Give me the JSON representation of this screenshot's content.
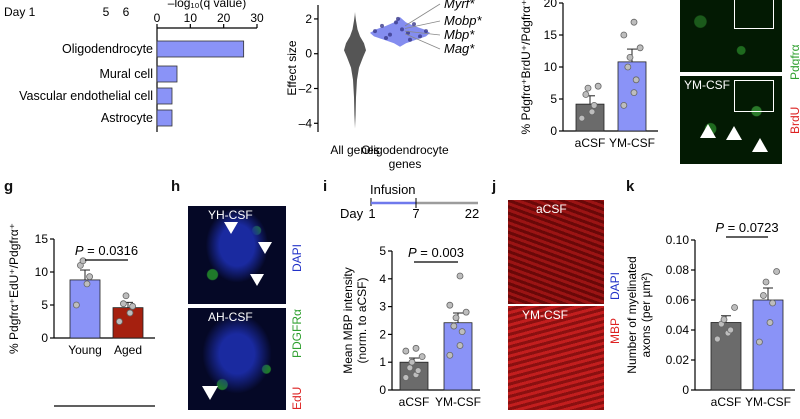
{
  "panel_letters": {
    "g": "g",
    "h": "h",
    "i": "i",
    "j": "j",
    "k": "k"
  },
  "colors": {
    "bar_blue": "#8a93f7",
    "bar_gray": "#6b6b6b",
    "bar_red": "#a5200f",
    "violin_gray": "#555555",
    "violin_blue": "#6f79ec"
  },
  "micrographs": {
    "top_right": {
      "label_top": "YM-CSF",
      "channel_1": "BrdU",
      "channel_2": "Pdgfrα"
    },
    "h": {
      "label_top": "YH-CSF",
      "label_bottom": "AH-CSF",
      "channel_1": "EdU",
      "channel_2": "PDGFRα",
      "channel_3": "DAPI"
    },
    "j": {
      "label_top": "aCSF",
      "label_bottom": "YM-CSF",
      "channel_1": "MBP",
      "channel_2": "DAPI"
    }
  },
  "chart_data": [
    {
      "id": "cell-type-enrichment",
      "type": "bar",
      "orientation": "horizontal",
      "categories": [
        "Oligodendrocyte",
        "Mural cell",
        "Vascular endothelial cell",
        "Astrocyte"
      ],
      "values": [
        26,
        6,
        4.5,
        4.5
      ],
      "xlabel": "–log₁₀(q value)",
      "xticks": [
        "0",
        "10",
        "20",
        "30"
      ],
      "xlim": [
        0,
        30
      ],
      "header_text": "Day 1",
      "header_ticks": [
        "5",
        "6"
      ]
    },
    {
      "id": "effect-size-violin",
      "type": "violin",
      "categories": [
        "All genes",
        "Oligodendrocyte genes"
      ],
      "category_labels": [
        "All genes",
        "Oligodendrocyte",
        "genes"
      ],
      "ylabel": "Effect size",
      "yticks": [
        "–4",
        "–2",
        "0",
        "2"
      ],
      "ylim": [
        -4.5,
        2.8
      ],
      "annotations": [
        "Myrf*",
        "Mobp*",
        "Mbp*",
        "Mag*"
      ]
    },
    {
      "id": "brdu-opc",
      "type": "bar",
      "categories": [
        "aCSF",
        "YM-CSF"
      ],
      "values": [
        4.2,
        10.8
      ],
      "errors": [
        1.3,
        2.0
      ],
      "points": [
        [
          2,
          3,
          4,
          5.7,
          6.7,
          7
        ],
        [
          4,
          6,
          8,
          10,
          11.5,
          13,
          15,
          17
        ]
      ],
      "ylabel": "% Pdgfrα⁺BrdU⁺/Pdgfrα⁺",
      "yticks": [
        "0",
        "5",
        "10",
        "15",
        "20"
      ],
      "ylim": [
        0,
        20
      ]
    },
    {
      "id": "g",
      "type": "bar",
      "categories": [
        "Young",
        "Aged"
      ],
      "values": [
        8.8,
        4.6
      ],
      "errors": [
        1.5,
        0.8
      ],
      "points": [
        [
          5,
          8.2,
          9.3,
          11,
          11.7
        ],
        [
          2.5,
          3.8,
          4.8,
          5.2,
          6.4
        ]
      ],
      "ylabel": "% Pdgfrα⁺EdU⁺/Pdgfrα⁺",
      "yticks": [
        "0",
        "5",
        "10",
        "15"
      ],
      "ylim": [
        0,
        15
      ],
      "pvalue": "P = 0.0316"
    },
    {
      "id": "i",
      "type": "bar",
      "categories": [
        "aCSF",
        "YM-CSF"
      ],
      "values": [
        1.0,
        2.42
      ],
      "errors": [
        0.15,
        0.35
      ],
      "points": [
        [
          0.45,
          0.55,
          0.7,
          0.8,
          1.0,
          1.2,
          1.4,
          1.5
        ],
        [
          1.25,
          1.6,
          2.1,
          2.3,
          2.6,
          2.8,
          3.05,
          4.1
        ]
      ],
      "ylabel_line1": "Mean MBP intensity",
      "ylabel_line2": "(norm. to aCSF)",
      "yticks": [
        "0",
        "1",
        "2",
        "3",
        "4",
        "5"
      ],
      "ylim": [
        0,
        5
      ],
      "pvalue": "P = 0.003",
      "timeline": {
        "title": "Infusion",
        "start_label": "Day",
        "days": [
          "1",
          "7",
          "22"
        ]
      }
    },
    {
      "id": "k",
      "type": "bar",
      "categories": [
        "aCSF",
        "YM-CSF"
      ],
      "values": [
        0.045,
        0.06
      ],
      "errors": [
        0.0045,
        0.008
      ],
      "points": [
        [
          0.034,
          0.038,
          0.04,
          0.044,
          0.047,
          0.055
        ],
        [
          0.032,
          0.045,
          0.058,
          0.063,
          0.072,
          0.079
        ]
      ],
      "ylabel_line1": "Number of myelinated",
      "ylabel_line2": "axons (per µm²)",
      "yticks": [
        "0",
        "0.02",
        "0.04",
        "0.06",
        "0.08",
        "0.10"
      ],
      "ylim": [
        0,
        0.1
      ],
      "pvalue": "P = 0.0723"
    }
  ]
}
